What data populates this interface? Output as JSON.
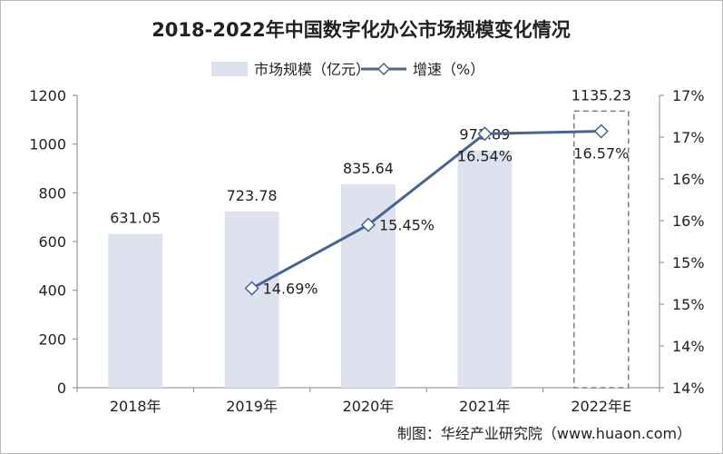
{
  "chart_data": {
    "type": "bar+line",
    "title": "2018-2022年中国数字化办公市场规模变化情况",
    "categories": [
      "2018年",
      "2019年",
      "2020年",
      "2021年",
      "2022年E"
    ],
    "series": [
      {
        "name": "市场规模（亿元）",
        "type": "bar",
        "axis": "left",
        "values": [
          631.05,
          723.78,
          835.64,
          973.89,
          1135.23
        ],
        "labels": [
          "631.05",
          "723.78",
          "835.64",
          "973.89",
          "1135.23"
        ]
      },
      {
        "name": "增速（%）",
        "type": "line",
        "axis": "right",
        "values": [
          null,
          14.69,
          15.45,
          16.54,
          16.57
        ],
        "labels": [
          "",
          "14.69%",
          "15.45%",
          "16.54%",
          "16.57%"
        ]
      }
    ],
    "left_axis": {
      "ylim": [
        0,
        1200
      ],
      "ticks": [
        "0",
        "200",
        "400",
        "600",
        "800",
        "1000",
        "1200"
      ]
    },
    "right_axis": {
      "ylim": [
        13.5,
        17
      ],
      "tick_values": [
        13.5,
        14,
        14.5,
        15,
        15.5,
        16,
        16.5,
        17
      ],
      "ticks": [
        "14%",
        "14%",
        "15%",
        "15%",
        "16%",
        "16%",
        "17%",
        "17%"
      ]
    },
    "legend_placement": "top",
    "grid": false,
    "colors": {
      "bar": "#dde2ee",
      "line": "#4a6491",
      "forecast_border": "#7f7f7f"
    },
    "source": "制图：华经产业研究院（www.huaon.com）",
    "watermark": "华经产业研究院 www.huaon.com"
  }
}
